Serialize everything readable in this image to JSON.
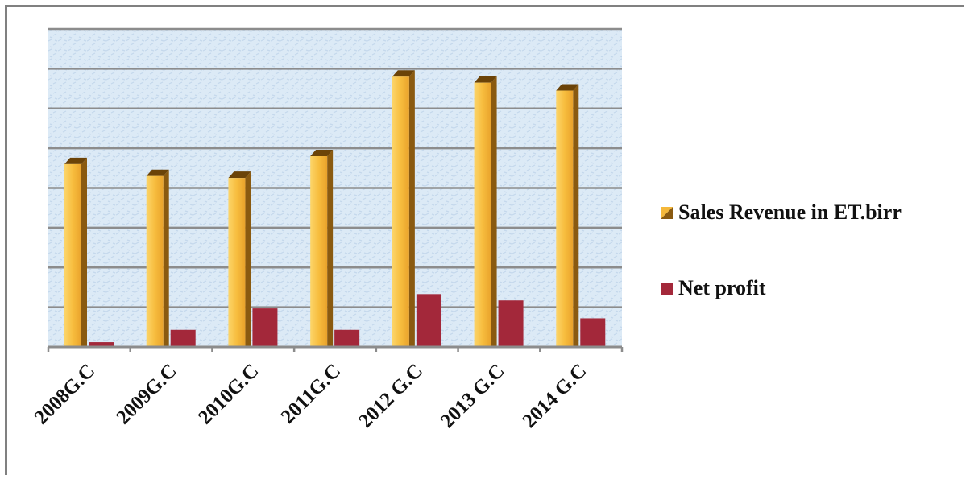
{
  "chart_data": {
    "type": "bar",
    "categories": [
      "2008G.C",
      "2009G.C",
      "2010G.C",
      "2011G.C",
      "2012 G.C",
      "2013 G.C",
      "2014 G.C"
    ],
    "series": [
      {
        "name": "Sales Revenue in ET.birr",
        "values": [
          4.6,
          4.3,
          4.25,
          4.8,
          6.8,
          6.65,
          6.45
        ]
      },
      {
        "name": "Net profit",
        "values": [
          0.12,
          0.43,
          0.97,
          0.43,
          1.33,
          1.17,
          0.72
        ]
      }
    ],
    "ylim": [
      0,
      8
    ],
    "grid": true,
    "legend_position": "right",
    "colors": {
      "sales": "#F5B83A",
      "sales_side": "#8A5A10",
      "profit": "#A3283A",
      "plot_bg": "#DCEAF6",
      "grid": "#8C8C8C"
    }
  }
}
